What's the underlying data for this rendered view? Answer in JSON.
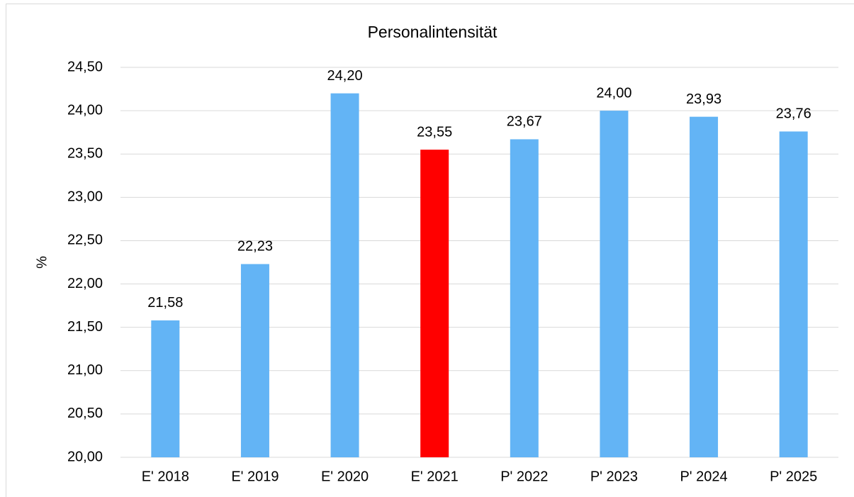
{
  "chart_data": {
    "type": "bar",
    "title": "Personalintensität",
    "y_label": "%",
    "categories": [
      "E' 2018",
      "E' 2019",
      "E' 2020",
      "E' 2021",
      "P' 2022",
      "P' 2023",
      "P' 2024",
      "P' 2025"
    ],
    "values": [
      21.58,
      22.23,
      24.2,
      23.55,
      23.67,
      24.0,
      23.93,
      23.76
    ],
    "value_labels": [
      "21,58",
      "22,23",
      "24,20",
      "23,55",
      "23,67",
      "24,00",
      "23,93",
      "23,76"
    ],
    "colors": [
      "#63b4f5",
      "#63b4f5",
      "#63b4f5",
      "#ff0000",
      "#63b4f5",
      "#63b4f5",
      "#63b4f5",
      "#63b4f5"
    ],
    "ylim": [
      20,
      24.5
    ],
    "yticks": [
      {
        "value": 20,
        "label": "20,00"
      },
      {
        "value": 20.5,
        "label": "20,50"
      },
      {
        "value": 21,
        "label": "21,00"
      },
      {
        "value": 21.5,
        "label": "21,50"
      },
      {
        "value": 22,
        "label": "22,00"
      },
      {
        "value": 22.5,
        "label": "22,50"
      },
      {
        "value": 23,
        "label": "23,00"
      },
      {
        "value": 23.5,
        "label": "23,50"
      },
      {
        "value": 24,
        "label": "24,00"
      },
      {
        "value": 24.5,
        "label": "24,50"
      }
    ],
    "grid": true
  }
}
